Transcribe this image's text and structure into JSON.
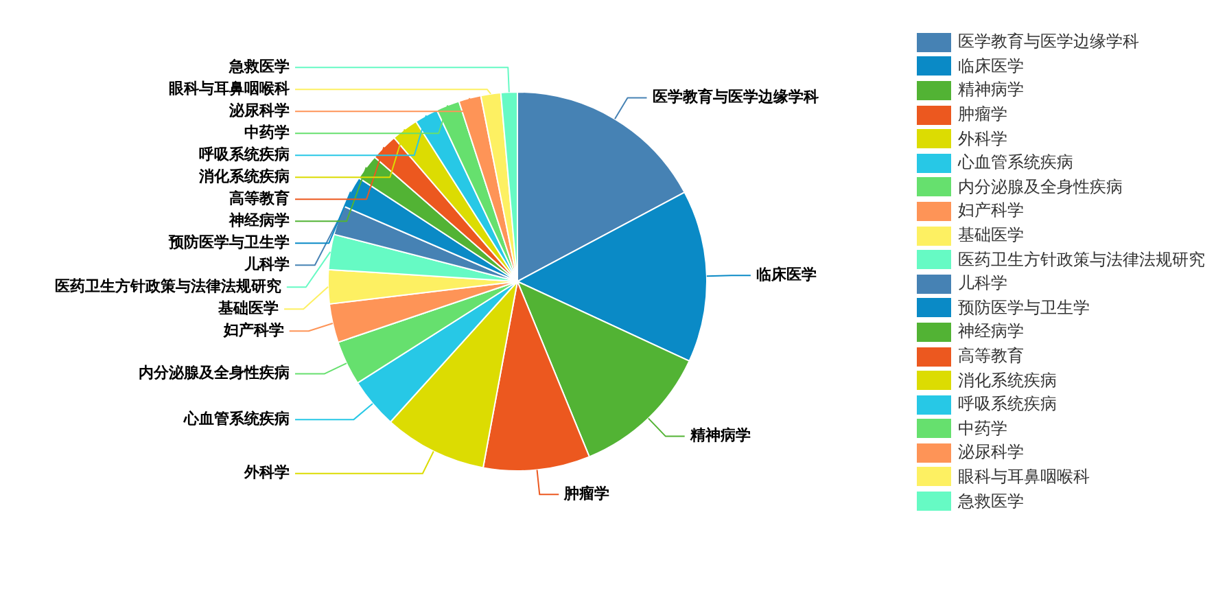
{
  "chart_data": {
    "type": "pie",
    "categories": [
      "医学教育与医学边缘学科",
      "临床医学",
      "精神病学",
      "肿瘤学",
      "外科学",
      "心血管系统疾病",
      "内分泌腺及全身性疾病",
      "妇产科学",
      "基础医学",
      "医药卫生方针政策与法律法规研究",
      "儿科学",
      "预防医学与卫生学",
      "神经病学",
      "高等教育",
      "消化系统疾病",
      "呼吸系统疾病",
      "中药学",
      "泌尿科学",
      "眼科与耳鼻咽喉科",
      "急救医学"
    ],
    "values": [
      17.2,
      14.7,
      11.9,
      9.1,
      8.8,
      4.3,
      3.8,
      3.3,
      2.9,
      3.0,
      2.5,
      2.7,
      2.2,
      2.3,
      2.3,
      2.0,
      2.0,
      1.9,
      1.7,
      1.4
    ],
    "colors": [
      "#4682b4",
      "#0a8ac6",
      "#52b334",
      "#ec581f",
      "#dcdc02",
      "#27c8e6",
      "#66e06e",
      "#fe9457",
      "#fdf062",
      "#66fac4",
      "#4682b4",
      "#0a8ac6",
      "#52b334",
      "#ec581f",
      "#dcdc02",
      "#27c8e6",
      "#66e06e",
      "#fe9457",
      "#fdf062",
      "#66fac4"
    ],
    "legend": "right"
  }
}
